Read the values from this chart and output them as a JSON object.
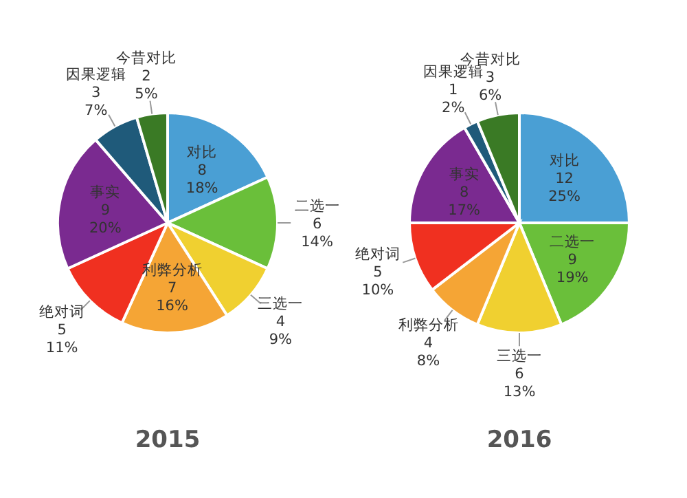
{
  "chart_data": [
    {
      "type": "pie",
      "title": "2015",
      "categories": [
        "对比",
        "二选一",
        "三选一",
        "利弊分析",
        "绝对词",
        "事实",
        "因果逻辑",
        "今昔对比"
      ],
      "values": [
        8,
        6,
        4,
        7,
        5,
        9,
        3,
        2
      ],
      "value_labels": [
        "8\n18%",
        "6\n14%",
        "4\n9%",
        "7\n16%",
        "5\n11%",
        "9\n20%",
        "3\n7%",
        "2\n5%"
      ],
      "colors": [
        "#4a9fd4",
        "#6abf3a",
        "#f0d030",
        "#f5a535",
        "#f03020",
        "#7a2a90",
        "#1f5a7a",
        "#3a7a25"
      ]
    },
    {
      "type": "pie",
      "title": "2016",
      "categories": [
        "对比",
        "二选一",
        "三选一",
        "利弊分析",
        "绝对词",
        "事实",
        "因果逻辑",
        "今昔对比"
      ],
      "values": [
        12,
        9,
        6,
        4,
        5,
        8,
        1,
        3
      ],
      "value_labels": [
        "12\n25%",
        "9\n19%",
        "6\n13%",
        "4\n8%",
        "5\n10%",
        "8\n17%",
        "1\n2%",
        "3\n6%"
      ],
      "colors": [
        "#4a9fd4",
        "#6abf3a",
        "#f0d030",
        "#f5a535",
        "#f03020",
        "#7a2a90",
        "#1f5a7a",
        "#3a7a25"
      ]
    }
  ]
}
